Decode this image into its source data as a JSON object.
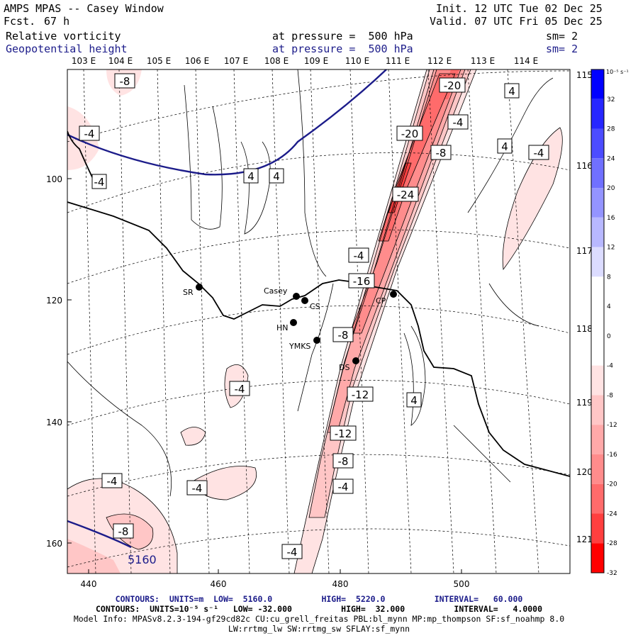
{
  "header": {
    "title": "AMPS MPAS -- Casey Window",
    "forecast_label": "Fcst.",
    "forecast_value": "67 h",
    "init": "Init. 12 UTC Tue 02 Dec 25",
    "valid": "Valid. 07 UTC Fri 05 Dec 25",
    "field1": {
      "name": "Relative vorticity",
      "level": "at pressure =  500 hPa",
      "smooth": "sm= 2"
    },
    "field2": {
      "name": "Geopotential height",
      "level": "at pressure =  500 hPa",
      "smooth": "sm= 2"
    }
  },
  "map": {
    "lon_top_labels": [
      "103 E",
      "104 E",
      "105 E",
      "106 E",
      "107 E",
      "108 E",
      "109 E",
      "110 E",
      "111 E",
      "112 E",
      "113 E",
      "114 E"
    ],
    "lat_right_labels": [
      "115 E",
      "116 E",
      "117 E",
      "118 E",
      "119 E",
      "120 E",
      "121 E"
    ],
    "x_axis_ticks": [
      "440",
      "460",
      "480",
      "500"
    ],
    "y_axis_ticks": [
      "100",
      "120",
      "140",
      "160"
    ],
    "stations": [
      {
        "name": "SR"
      },
      {
        "name": "Casey"
      },
      {
        "name": "CS"
      },
      {
        "name": "HN"
      },
      {
        "name": "YMKS"
      },
      {
        "name": "DS"
      },
      {
        "name": "CP"
      }
    ],
    "contour_labels": [
      "-20",
      "-20",
      "-24",
      "-16",
      "-4",
      "-8",
      "-12",
      "-12",
      "-8",
      "-4",
      "-4",
      "-8",
      "4",
      "4",
      "4",
      "4",
      "-4",
      "-4",
      "-4",
      "-4",
      "-4",
      "-8",
      "-8",
      "-4",
      "4",
      "-4"
    ],
    "height_label": "5160"
  },
  "colorbar": {
    "unit": "10⁻⁵ s⁻¹",
    "labels": [
      "32",
      "28",
      "24",
      "20",
      "16",
      "12",
      "8",
      "4",
      "0",
      "-4",
      "-8",
      "-12",
      "-16",
      "-20",
      "-24",
      "-28",
      "-32"
    ],
    "colors": [
      "#0000ff",
      "#2626ff",
      "#4c4cff",
      "#7070ff",
      "#9494ff",
      "#b8b8ff",
      "#dcdcff",
      "#ffffff",
      "#ffffff",
      "#ffffff",
      "#ffe3e3",
      "#ffc6c6",
      "#ffa9a9",
      "#ff8c8c",
      "#ff6b6b",
      "#ff3f3f",
      "#ff0000"
    ]
  },
  "footer": {
    "line1": "CONTOURS:  UNITS=m  LOW=  5160.0          HIGH=  5220.0          INTERVAL=   60.000",
    "line2": "CONTOURS:  UNITS=10⁻⁵ s⁻¹   LOW= -32.000          HIGH=  32.000          INTERVAL=   4.0000",
    "line3": "Model Info: MPASv8.2.3-194-gf29cd82c CU:cu_grell_freitas PBL:bl_mynn MP:mp_thompson SF:sf_noahmp 8.0",
    "line4": "LW:rrtmg_lw SW:rrtmg_sw SFLAY:sf_mynn"
  },
  "colors": {
    "height_contour": "#1c1c8a",
    "frame": "#000000"
  }
}
